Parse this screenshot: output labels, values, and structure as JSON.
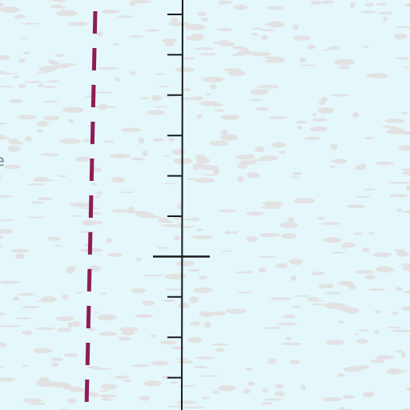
{
  "map": {
    "colors": {
      "background": "#e4f8fc",
      "terrain_texture": "#e2e2e3",
      "scale_line": "#1a1a1a",
      "dashed_boundary": "#8e1d55",
      "label_text": "#6f7d84"
    },
    "labels": {
      "edge_label": "e"
    },
    "scale_bar": {
      "orientation": "vertical",
      "minor_tick_count": 10,
      "major_tick_index": 6
    },
    "boundary": {
      "style": "dashed"
    }
  }
}
